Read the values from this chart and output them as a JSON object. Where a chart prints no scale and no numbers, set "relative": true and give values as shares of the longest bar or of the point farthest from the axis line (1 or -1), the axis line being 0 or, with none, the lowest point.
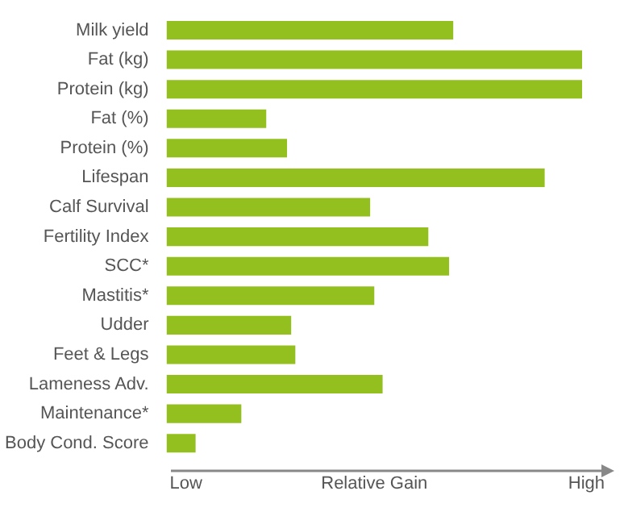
{
  "chart_data": {
    "type": "bar",
    "orientation": "horizontal",
    "relative": true,
    "xlabel": "Relative Gain",
    "annotations": [
      "Low",
      "High"
    ],
    "categories": [
      "Milk yield",
      "Fat (kg)",
      "Protein (kg)",
      "Fat (%)",
      "Protein (%)",
      "Lifespan",
      "Calf Survival",
      "Fertility Index",
      "SCC*",
      "Mastitis*",
      "Udder",
      "Feet & Legs",
      "Lameness Adv.",
      "Maintenance*",
      "Body Cond. Score"
    ],
    "values": [
      0.69,
      1,
      1,
      0.24,
      0.29,
      0.91,
      0.49,
      0.63,
      0.68,
      0.5,
      0.3,
      0.31,
      0.52,
      0.18,
      0.07
    ],
    "color": "#93c01f",
    "legend": false
  }
}
